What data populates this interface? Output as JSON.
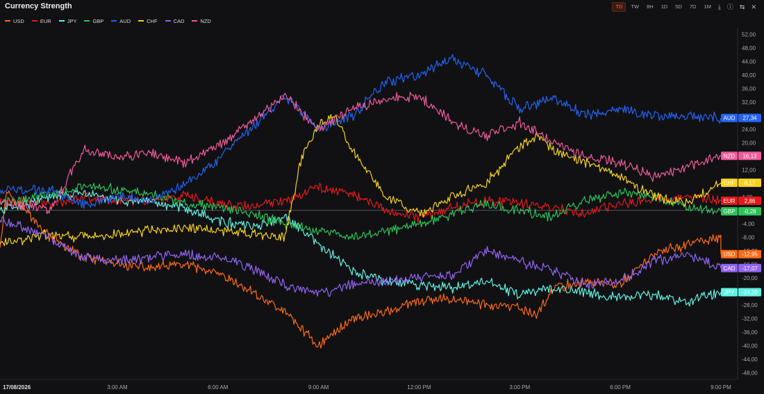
{
  "header": {
    "title": "Currency Strength",
    "timeframes": [
      {
        "label": "TD",
        "active": true
      },
      {
        "label": "TW",
        "active": false
      },
      {
        "label": "8H",
        "active": false
      },
      {
        "label": "1D",
        "active": false
      },
      {
        "label": "5D",
        "active": false
      },
      {
        "label": "7D",
        "active": false
      },
      {
        "label": "1M",
        "active": false
      }
    ],
    "icons": [
      "download-icon",
      "help-icon",
      "settings-icon",
      "close-icon"
    ]
  },
  "chart_data": {
    "type": "line",
    "title": "",
    "xlabel": "",
    "ylabel": "",
    "x_ticks": [
      "17/08/2026",
      "3:00 AM",
      "6:00 AM",
      "9:00 AM",
      "12:00 PM",
      "3:00 PM",
      "6:00 PM",
      "9:00 PM"
    ],
    "x_tick_hours": [
      0,
      3,
      6,
      9,
      12,
      15,
      18,
      21
    ],
    "x_range_hours": [
      -0.5,
      21.5
    ],
    "ylim": [
      -50,
      54
    ],
    "y_ticks": [
      52,
      48,
      44,
      40,
      36,
      32,
      28,
      24,
      20,
      16,
      12,
      8,
      4,
      0,
      -4,
      -8,
      -12,
      -16,
      -20,
      -24,
      -28,
      -32,
      -36,
      -40,
      -44,
      -48
    ],
    "y_tick_labels": [
      "52,00",
      "48,00",
      "44,00",
      "40,00",
      "36,00",
      "32,00",
      "28,00",
      "24,00",
      "20,00",
      "16,00",
      "12,00",
      "8,00",
      "4,00",
      "0,00",
      "-4,00",
      "-8,00",
      "-12,00",
      "-16,00",
      "-20,00",
      "-24,00",
      "-28,00",
      "-32,00",
      "-36,00",
      "-40,00",
      "-44,00",
      "-48,00"
    ],
    "grid": false,
    "legend": "top-left",
    "zero_line": true,
    "series": [
      {
        "name": "USD",
        "color": "#ff6a13",
        "last": "-12,95",
        "x": [
          -0.5,
          -0.3,
          1,
          2,
          3,
          4,
          5,
          6,
          7,
          8,
          9,
          9.5,
          10,
          11,
          12,
          13,
          14,
          15,
          15.5,
          16,
          17,
          18,
          19,
          20,
          21,
          21
        ],
        "y": [
          -10,
          6,
          -8,
          -14,
          -16,
          -17,
          -16,
          -19,
          -24,
          -30,
          -40,
          -36,
          -32,
          -30,
          -27,
          -26,
          -28,
          -29,
          -31,
          -23,
          -21,
          -22,
          -13,
          -10,
          -8,
          -12.95
        ]
      },
      {
        "name": "EUR",
        "color": "#e31919",
        "last": "2,86",
        "x": [
          -0.5,
          1,
          2,
          3,
          4,
          5,
          6,
          7,
          8,
          9,
          10,
          11,
          12,
          13,
          14,
          15,
          16,
          17,
          18,
          19,
          20,
          21
        ],
        "y": [
          3,
          2,
          4,
          3,
          3,
          4,
          2,
          1,
          3,
          7,
          5,
          0,
          -2,
          1,
          3,
          2,
          1,
          -1,
          2,
          3,
          4,
          2.86
        ]
      },
      {
        "name": "JPY",
        "color": "#5ff3e3",
        "last": "-24,20",
        "x": [
          -0.5,
          1,
          2,
          3,
          4,
          5,
          6,
          7,
          8,
          9,
          10,
          11,
          12,
          13,
          14,
          15,
          16,
          17,
          18,
          19,
          20,
          21
        ],
        "y": [
          0,
          4,
          5,
          3,
          2,
          1,
          -3,
          -5,
          -2,
          -10,
          -18,
          -21,
          -22,
          -23,
          -21,
          -25,
          -23,
          -24,
          -26,
          -25,
          -27,
          -24.2
        ]
      },
      {
        "name": "GBP",
        "color": "#2cc358",
        "last": "-0,28",
        "x": [
          -0.5,
          1,
          2,
          3,
          4,
          5,
          6,
          7,
          8,
          9,
          10,
          11,
          12,
          13,
          14,
          15,
          16,
          17,
          18,
          19,
          20,
          21
        ],
        "y": [
          2,
          5,
          7,
          6,
          5,
          2,
          1,
          -1,
          -4,
          -6,
          -8,
          -6,
          -4,
          -1,
          2,
          0,
          -2,
          3,
          5,
          4,
          1,
          -0.28
        ]
      },
      {
        "name": "AUD",
        "color": "#2463f0",
        "last": "27,34",
        "x": [
          -0.5,
          1,
          2,
          3,
          4,
          5,
          6,
          7,
          8,
          9,
          10,
          11,
          12,
          13,
          14,
          15,
          16,
          17,
          18,
          19,
          20,
          21
        ],
        "y": [
          6,
          6,
          2,
          4,
          3,
          8,
          15,
          24,
          34,
          24,
          28,
          38,
          40,
          45,
          40,
          30,
          33,
          28,
          30,
          28,
          28,
          27.34
        ]
      },
      {
        "name": "CHF",
        "color": "#f7d21a",
        "last": "8,17",
        "x": [
          -0.5,
          1,
          2,
          3,
          4,
          5,
          6,
          7,
          8,
          8.5,
          9,
          9.5,
          10,
          11,
          12,
          13,
          14,
          15,
          15.5,
          16,
          17,
          18,
          19,
          20,
          20.5,
          21
        ],
        "y": [
          -10,
          -7,
          -8,
          -7,
          -6,
          -5,
          -6,
          -7,
          -8,
          16,
          25,
          28,
          18,
          4,
          -1,
          4,
          8,
          19,
          22,
          18,
          14,
          10,
          4,
          2,
          5,
          8.17
        ]
      },
      {
        "name": "CAD",
        "color": "#9264f1",
        "last": "-17,07",
        "x": [
          -0.5,
          1,
          2,
          3,
          4,
          5,
          6,
          7,
          8,
          9,
          10,
          11,
          12,
          13,
          14,
          15,
          16,
          17,
          18,
          19,
          20,
          21
        ],
        "y": [
          -3,
          -8,
          -14,
          -15,
          -14,
          -13,
          -14,
          -17,
          -22,
          -25,
          -22,
          -21,
          -20,
          -19,
          -12,
          -15,
          -18,
          -22,
          -21,
          -15,
          -13,
          -17.07
        ]
      },
      {
        "name": "NZD",
        "color": "#f05a9a",
        "last": "16,13",
        "x": [
          -0.5,
          1,
          2,
          3,
          4,
          5,
          6,
          7,
          8,
          9,
          10,
          11,
          12,
          13,
          14,
          15,
          16,
          17,
          18,
          19,
          20,
          21
        ],
        "y": [
          3,
          0,
          18,
          16,
          17,
          14,
          19,
          26,
          34,
          24,
          30,
          33,
          34,
          26,
          22,
          26,
          20,
          16,
          14,
          10,
          13,
          16.13
        ]
      }
    ]
  }
}
